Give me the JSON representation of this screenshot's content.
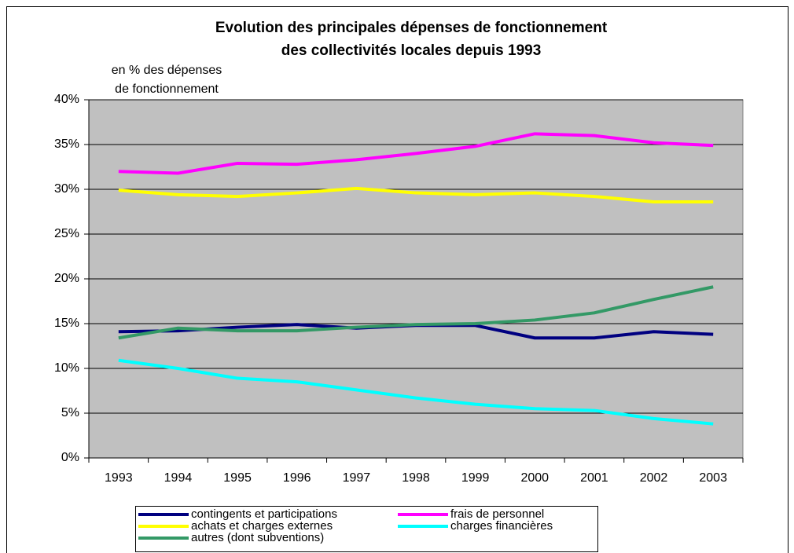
{
  "chart_data": {
    "type": "line",
    "title": [
      "Evolution des principales dépenses de fonctionnement",
      "des collectivités locales depuis 1993"
    ],
    "y_label": [
      "en % des dépenses",
      "de fonctionnement"
    ],
    "categories": [
      "1993",
      "1994",
      "1995",
      "1996",
      "1997",
      "1998",
      "1999",
      "2000",
      "2001",
      "2002",
      "2003"
    ],
    "series": [
      {
        "name": "contingents et participations",
        "color": "#000080",
        "values": [
          14.1,
          14.2,
          14.6,
          14.9,
          14.5,
          14.8,
          14.8,
          13.4,
          13.4,
          14.1,
          13.8
        ]
      },
      {
        "name": "frais de personnel",
        "color": "#ff00ff",
        "values": [
          32.0,
          31.8,
          32.9,
          32.8,
          33.3,
          34.0,
          34.8,
          36.2,
          36.0,
          35.2,
          34.9
        ]
      },
      {
        "name": "achats et charges externes",
        "color": "#ffff00",
        "values": [
          29.9,
          29.4,
          29.2,
          29.6,
          30.1,
          29.6,
          29.4,
          29.6,
          29.2,
          28.6,
          28.6
        ]
      },
      {
        "name": "charges financières",
        "color": "#00ffff",
        "values": [
          10.9,
          10.0,
          8.9,
          8.5,
          7.6,
          6.7,
          6.0,
          5.5,
          5.3,
          4.4,
          3.8
        ]
      },
      {
        "name": "autres (dont subventions)",
        "color": "#339966",
        "values": [
          13.4,
          14.5,
          14.2,
          14.2,
          14.6,
          14.9,
          15.0,
          15.4,
          16.2,
          17.7,
          19.1
        ]
      }
    ],
    "ylim": [
      0,
      40
    ],
    "yticks": [
      {
        "value": 0,
        "label": "0%"
      },
      {
        "value": 5,
        "label": "5%"
      },
      {
        "value": 10,
        "label": "10%"
      },
      {
        "value": 15,
        "label": "15%"
      },
      {
        "value": 20,
        "label": "20%"
      },
      {
        "value": 25,
        "label": "25%"
      },
      {
        "value": 30,
        "label": "30%"
      },
      {
        "value": 35,
        "label": "35%"
      },
      {
        "value": 40,
        "label": "40%"
      }
    ],
    "grid": true
  }
}
